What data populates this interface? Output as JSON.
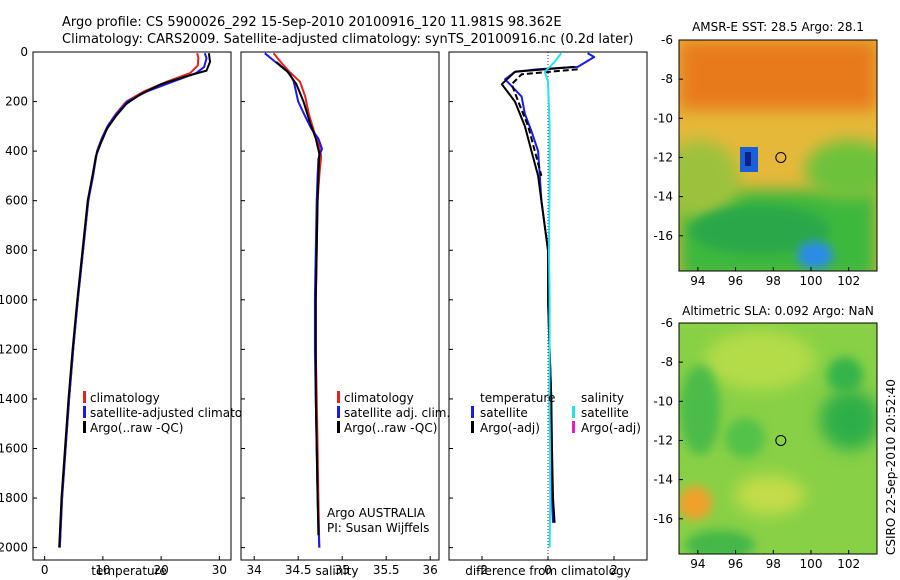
{
  "title_line1": "Argo profile: CS 5900026_292 15-Sep-2010 20100916_120 11.981S 98.362E",
  "title_line2": "Climatology: CARS2009. Satellite-adjusted climatology: synTS_20100916.nc (0.2d later)",
  "side_label": "CSIRO 22-Sep-2010 20:52:40",
  "colors": {
    "climatology": "#e8201a",
    "satellite": "#1a1aee",
    "argo": "#000000",
    "sat_salinity": "#22e3ee",
    "argo_salinity": "#e020c0"
  },
  "chart_data": [
    {
      "type": "line",
      "xlabel": "temperature",
      "ylim": [
        2050,
        0
      ],
      "xlim": [
        -2,
        32
      ],
      "xticks": [
        0,
        10,
        20,
        30
      ],
      "yticks": [
        0,
        200,
        400,
        600,
        800,
        1000,
        1200,
        1400,
        1600,
        1800,
        2000
      ],
      "legend": [
        "climatology",
        "satellite-adjusted climatology",
        "Argo(..raw -QC)"
      ],
      "series": [
        {
          "name": "climatology",
          "color_key": "climatology",
          "points": [
            [
              26.2,
              5
            ],
            [
              26.4,
              25
            ],
            [
              26.3,
              55
            ],
            [
              25,
              85
            ],
            [
              21,
              120
            ],
            [
              17,
              160
            ],
            [
              14,
              200
            ],
            [
              12.2,
              250
            ],
            [
              10.8,
              300
            ],
            [
              9.8,
              350
            ],
            [
              9,
              400
            ],
            [
              8.3,
              500
            ],
            [
              7.5,
              600
            ],
            [
              6.6,
              800
            ],
            [
              5.7,
              1000
            ],
            [
              4.9,
              1200
            ],
            [
              4.2,
              1400
            ],
            [
              3.6,
              1600
            ],
            [
              3,
              1800
            ],
            [
              2.6,
              2000
            ]
          ]
        },
        {
          "name": "satellite-adjusted climatology",
          "color_key": "satellite",
          "points": [
            [
              27.5,
              5
            ],
            [
              27.8,
              25
            ],
            [
              27.4,
              60
            ],
            [
              26,
              85
            ],
            [
              22,
              120
            ],
            [
              17.5,
              160
            ],
            [
              14.2,
              200
            ],
            [
              12.3,
              250
            ],
            [
              10.8,
              300
            ],
            [
              9.8,
              350
            ],
            [
              9,
              400
            ],
            [
              8.3,
              500
            ],
            [
              7.5,
              600
            ],
            [
              6.6,
              800
            ],
            [
              5.7,
              1000
            ],
            [
              4.9,
              1200
            ],
            [
              4.2,
              1400
            ],
            [
              3.6,
              1600
            ],
            [
              3,
              1800
            ],
            [
              2.6,
              2000
            ]
          ]
        },
        {
          "name": "Argo(..raw -QC)",
          "color_key": "argo",
          "points": [
            [
              28.2,
              5
            ],
            [
              28.4,
              40
            ],
            [
              27.8,
              75
            ],
            [
              24,
              100
            ],
            [
              20,
              130
            ],
            [
              16.5,
              170
            ],
            [
              14,
              210
            ],
            [
              12.2,
              260
            ],
            [
              10.7,
              310
            ],
            [
              9.6,
              370
            ],
            [
              8.8,
              420
            ],
            [
              8.2,
              500
            ],
            [
              7.4,
              600
            ],
            [
              6.5,
              800
            ],
            [
              5.6,
              1000
            ],
            [
              4.8,
              1200
            ],
            [
              4.1,
              1400
            ],
            [
              3.5,
              1600
            ],
            [
              2.9,
              1800
            ],
            [
              2.5,
              2000
            ]
          ]
        }
      ]
    },
    {
      "type": "line",
      "xlabel": "salinity",
      "ylim": [
        2050,
        0
      ],
      "xlim": [
        33.85,
        36.1
      ],
      "xticks": [
        34,
        34.5,
        35,
        35.5,
        36
      ],
      "legend": [
        "climatology",
        "satellite adj. clim.",
        "Argo(..raw -QC)"
      ],
      "annotation": [
        "Argo AUSTRALIA",
        "PI: Susan Wijffels"
      ],
      "series": [
        {
          "name": "climatology",
          "color_key": "climatology",
          "points": [
            [
              34.22,
              5
            ],
            [
              34.3,
              40
            ],
            [
              34.4,
              80
            ],
            [
              34.52,
              120
            ],
            [
              34.58,
              180
            ],
            [
              34.62,
              250
            ],
            [
              34.68,
              320
            ],
            [
              34.74,
              380
            ],
            [
              34.76,
              420
            ],
            [
              34.74,
              500
            ],
            [
              34.72,
              600
            ],
            [
              34.71,
              800
            ],
            [
              34.7,
              1000
            ],
            [
              34.7,
              1200
            ],
            [
              34.71,
              1400
            ],
            [
              34.72,
              1600
            ],
            [
              34.73,
              1800
            ],
            [
              34.74,
              2000
            ]
          ]
        },
        {
          "name": "satellite adj. clim.",
          "color_key": "satellite",
          "points": [
            [
              34.12,
              5
            ],
            [
              34.24,
              40
            ],
            [
              34.4,
              85
            ],
            [
              34.45,
              120
            ],
            [
              34.5,
              200
            ],
            [
              34.58,
              260
            ],
            [
              34.65,
              310
            ],
            [
              34.73,
              350
            ],
            [
              34.77,
              390
            ],
            [
              34.73,
              430
            ],
            [
              34.72,
              500
            ],
            [
              34.71,
              600
            ],
            [
              34.7,
              800
            ],
            [
              34.69,
              1000
            ],
            [
              34.69,
              1200
            ],
            [
              34.7,
              1400
            ],
            [
              34.71,
              1600
            ],
            [
              34.72,
              1800
            ],
            [
              34.74,
              2000
            ]
          ]
        },
        {
          "name": "Argo(..raw -QC)",
          "color_key": "argo",
          "points": [
            [
              34.25,
              40
            ],
            [
              34.38,
              80
            ],
            [
              34.48,
              130
            ],
            [
              34.56,
              200
            ],
            [
              34.63,
              280
            ],
            [
              34.7,
              350
            ],
            [
              34.74,
              410
            ],
            [
              34.73,
              500
            ],
            [
              34.72,
              600
            ],
            [
              34.71,
              800
            ],
            [
              34.7,
              1000
            ],
            [
              34.7,
              1200
            ],
            [
              34.7,
              1400
            ],
            [
              34.71,
              1600
            ],
            [
              34.72,
              1800
            ],
            [
              34.73,
              1950
            ]
          ]
        }
      ]
    },
    {
      "type": "line",
      "xlabel": "difference from climatology",
      "ylim": [
        2050,
        0
      ],
      "xlim": [
        -3.0,
        3.0
      ],
      "xticks": [
        -2,
        0,
        2
      ],
      "legend_left_header": "temperature",
      "legend_left": [
        "satellite",
        "Argo(-adj)"
      ],
      "legend_right_header": "salinity",
      "legend_right": [
        "satellite",
        "Argo(-adj)"
      ],
      "series": [
        {
          "name": "temperature satellite",
          "color_key": "satellite",
          "points": [
            [
              1.2,
              5
            ],
            [
              1.4,
              20
            ],
            [
              0.9,
              60
            ],
            [
              -0.3,
              70
            ],
            [
              -1,
              80
            ],
            [
              -1.3,
              110
            ],
            [
              -0.8,
              180
            ],
            [
              -0.7,
              250
            ],
            [
              -0.5,
              320
            ],
            [
              -0.3,
              400
            ],
            [
              -0.25,
              500
            ],
            [
              -0.2,
              600
            ],
            [
              -0.1,
              700
            ],
            [
              0,
              800
            ],
            [
              0,
              1000
            ],
            [
              0.05,
              1200
            ],
            [
              0.1,
              1400
            ],
            [
              0.1,
              1600
            ],
            [
              0.12,
              1800
            ],
            [
              0.15,
              1900
            ]
          ]
        },
        {
          "name": "temperature Argo(-adj)",
          "color_key": "argo",
          "points": [
            [
              0.8,
              60
            ],
            [
              -1,
              80
            ],
            [
              -1.4,
              130
            ],
            [
              -1,
              200
            ],
            [
              -0.7,
              300
            ],
            [
              -0.5,
              400
            ],
            [
              -0.3,
              500
            ],
            [
              -0.2,
              600
            ],
            [
              -0.1,
              700
            ],
            [
              0,
              800
            ],
            [
              0,
              1000
            ],
            [
              0.05,
              1200
            ],
            [
              0.1,
              1400
            ],
            [
              0.12,
              1600
            ],
            [
              0.15,
              1800
            ],
            [
              0.2,
              1900
            ]
          ]
        },
        {
          "name": "Argo(-adj) dashed",
          "color_key": "argo",
          "dash": true,
          "points": [
            [
              0.9,
              70
            ],
            [
              -0.8,
              90
            ],
            [
              -1.1,
              130
            ],
            [
              -0.9,
              200
            ],
            [
              -0.6,
              300
            ],
            [
              -0.4,
              400
            ],
            [
              -0.2,
              500
            ]
          ]
        },
        {
          "name": "salinity satellite",
          "color_key": "sat_salinity",
          "points": [
            [
              0.4,
              5
            ],
            [
              0.2,
              40
            ],
            [
              -0.1,
              80
            ],
            [
              0,
              120
            ],
            [
              0.05,
              300
            ],
            [
              0.05,
              500
            ],
            [
              0.03,
              800
            ],
            [
              0.05,
              1000
            ],
            [
              0.05,
              1200
            ],
            [
              0.04,
              1400
            ],
            [
              0.06,
              1600
            ],
            [
              0.07,
              1800
            ],
            [
              0.05,
              2000
            ]
          ]
        }
      ]
    },
    {
      "type": "heatmap",
      "title": "AMSR-E SST: 28.5 Argo: 28.1",
      "xlim": [
        93,
        103.5
      ],
      "ylim": [
        -17.8,
        -6
      ],
      "xticks": [
        94,
        96,
        98,
        100,
        102
      ],
      "yticks": [
        -6,
        -8,
        -10,
        -12,
        -14,
        -16
      ],
      "marker": [
        98.4,
        -12
      ]
    },
    {
      "type": "heatmap",
      "title": "Altimetric SLA: 0.092 Argo: NaN",
      "xlim": [
        93,
        103.5
      ],
      "ylim": [
        -17.8,
        -6
      ],
      "xticks": [
        94,
        96,
        98,
        100,
        102
      ],
      "yticks": [
        -6,
        -8,
        -10,
        -12,
        -14,
        -16
      ],
      "marker": [
        98.4,
        -12
      ]
    }
  ]
}
